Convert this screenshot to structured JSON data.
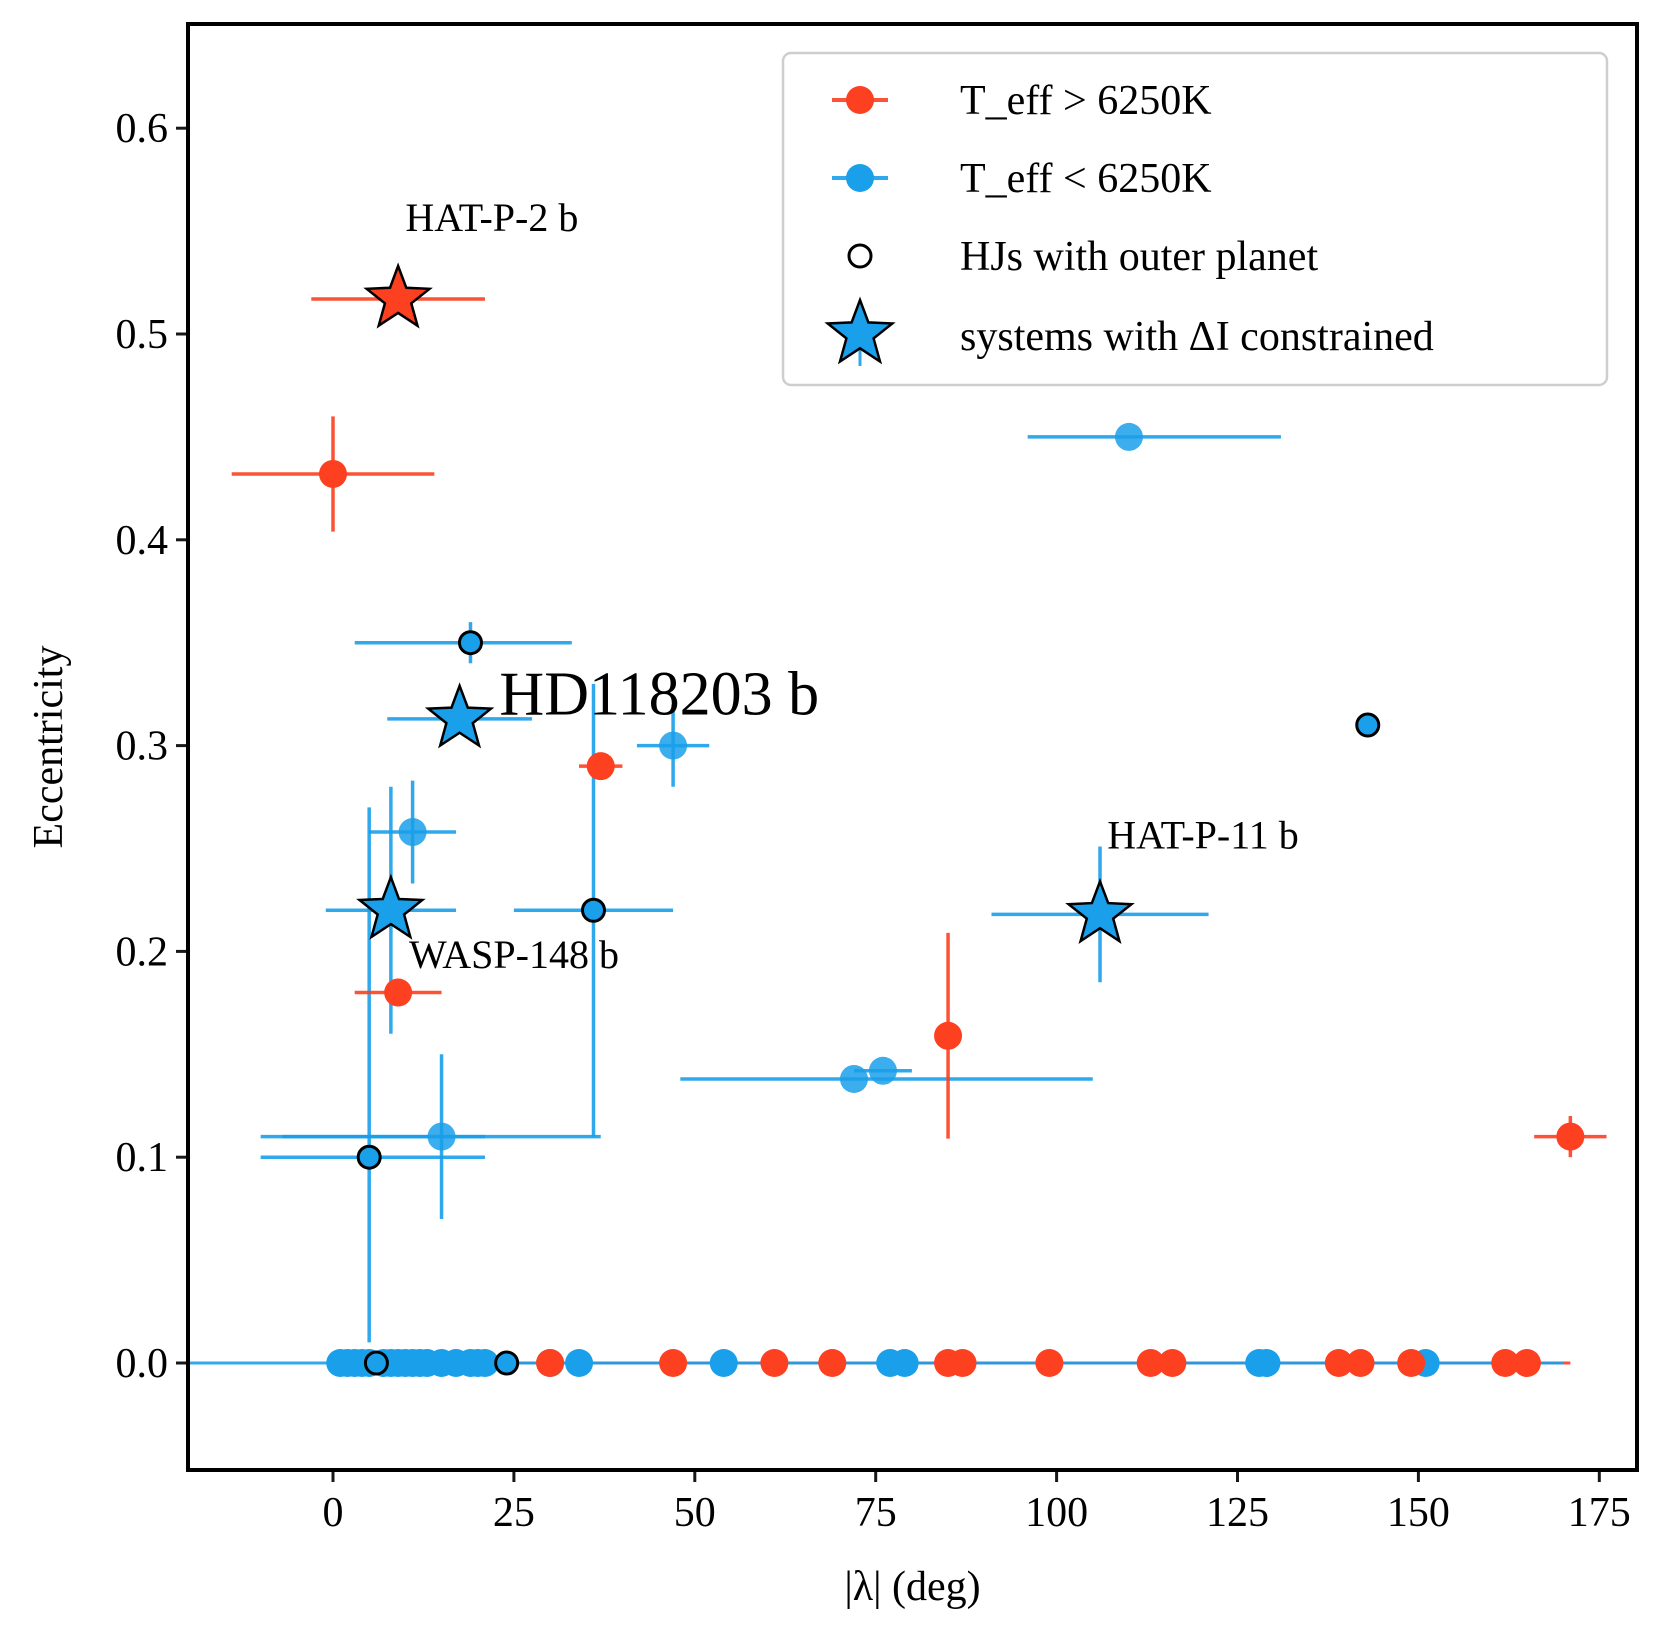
{
  "chart_data": {
    "type": "scatter",
    "xlabel": "|λ| (deg)",
    "ylabel": "Eccentricity",
    "xlim": [
      -20,
      180
    ],
    "ylim": [
      -0.05,
      0.65
    ],
    "xticks": [
      "0",
      "25",
      "50",
      "75",
      "100",
      "125",
      "150",
      "175"
    ],
    "yticks": [
      "0.0",
      "0.1",
      "0.2",
      "0.3",
      "0.4",
      "0.5",
      "0.6"
    ],
    "colors": {
      "hot": "#fc4020",
      "cool": "#1a9fea"
    },
    "legend": {
      "position": "top-right",
      "entries": [
        {
          "label": "T_eff > 6250K",
          "marker": "hot-point-icon"
        },
        {
          "label": "T_eff < 6250K",
          "marker": "cool-point-icon"
        },
        {
          "label": "HJs with outer planet",
          "marker": "open-circle-icon"
        },
        {
          "label": "systems with ΔI constrained",
          "marker": "star-icon"
        }
      ]
    },
    "annotations": [
      {
        "text": "HAT-P-2 b",
        "x": 10,
        "y": 0.55
      },
      {
        "text": "HD118203 b",
        "x": 23,
        "y": 0.315
      },
      {
        "text": "HAT-P-11 b",
        "x": 107,
        "y": 0.25
      },
      {
        "text": "WASP-148 b",
        "x": 10.5,
        "y": 0.192
      }
    ],
    "series": [
      {
        "name": "T_eff > 6250K",
        "color": "hot",
        "points": [
          {
            "x": 0,
            "y": 0.432,
            "xerr": 14,
            "yerr": 0.028
          },
          {
            "x": 37,
            "y": 0.29,
            "xerr": 3,
            "yerr": 0
          },
          {
            "x": 9,
            "y": 0.18,
            "xerr": 6,
            "yerr": 0
          },
          {
            "x": 85,
            "y": 0.159,
            "xerr": 0,
            "yerr": 0.05
          },
          {
            "x": 171,
            "y": 0.11,
            "xerr": 5,
            "yerr": 0.01
          }
        ],
        "zero_ecc_x": [
          30,
          47,
          61,
          69,
          85,
          87,
          99,
          113,
          116,
          139,
          142,
          149,
          162,
          165
        ],
        "zero_ecc_span": [
          0,
          171
        ]
      },
      {
        "name": "T_eff < 6250K",
        "color": "cool",
        "points": [
          {
            "x": 110,
            "y": 0.45,
            "xmin": 96,
            "xmax": 131,
            "yerr": 0
          },
          {
            "x": 47,
            "y": 0.3,
            "xerr": 5,
            "yerr": 0.02
          },
          {
            "x": 11,
            "y": 0.258,
            "xmin": 5,
            "xmax": 17,
            "yerr": 0.025
          },
          {
            "x": 15,
            "y": 0.11,
            "xmin": -10,
            "xmax": 21,
            "yerr": 0.04
          },
          {
            "x": 72,
            "y": 0.138,
            "xmin": 48,
            "xmax": 105,
            "yerr": 0
          },
          {
            "x": 76,
            "y": 0.142,
            "xerr": 4,
            "yerr": 0
          }
        ],
        "zero_ecc_x": [
          1,
          2,
          3,
          4,
          5,
          7,
          8,
          9,
          10,
          11,
          12,
          13,
          15,
          17,
          19,
          20,
          21,
          30,
          34,
          54,
          77,
          79,
          128,
          129,
          151
        ],
        "zero_ecc_span": [
          -20,
          170
        ]
      },
      {
        "name": "HJs with outer planet",
        "color": "cool",
        "outlined": true,
        "points": [
          {
            "x": 19,
            "y": 0.35,
            "xmin": 3,
            "xmax": 33,
            "yerr": 0.01
          },
          {
            "x": 36,
            "y": 0.22,
            "xmin": 25,
            "xmax": 47,
            "ymin": 0.11,
            "ymax": 0.33,
            "xlink": [
              -7,
              37
            ]
          },
          {
            "x": 143,
            "y": 0.31,
            "xerr": 0,
            "yerr": 0
          },
          {
            "x": 5,
            "y": 0.1,
            "xmin": -10,
            "xmax": 21,
            "ymin": 0.01,
            "ymax": 0.27
          },
          {
            "x": 6,
            "y": 0,
            "xerr": 0,
            "yerr": 0
          },
          {
            "x": 24,
            "y": 0,
            "xerr": 0,
            "yerr": 0
          }
        ]
      },
      {
        "name": "systems with ΔI constrained",
        "points": [
          {
            "x": 9,
            "y": 0.517,
            "xerr": 12,
            "yerr": 0,
            "color": "hot"
          },
          {
            "x": 17.5,
            "y": 0.313,
            "xerr": 10,
            "yerr": 0,
            "color": "cool"
          },
          {
            "x": 8,
            "y": 0.22,
            "xerr": 9,
            "yerr": 0.06,
            "color": "cool"
          },
          {
            "x": 106,
            "y": 0.218,
            "xerr": 15,
            "yerr": 0.033,
            "color": "cool"
          }
        ]
      }
    ]
  }
}
